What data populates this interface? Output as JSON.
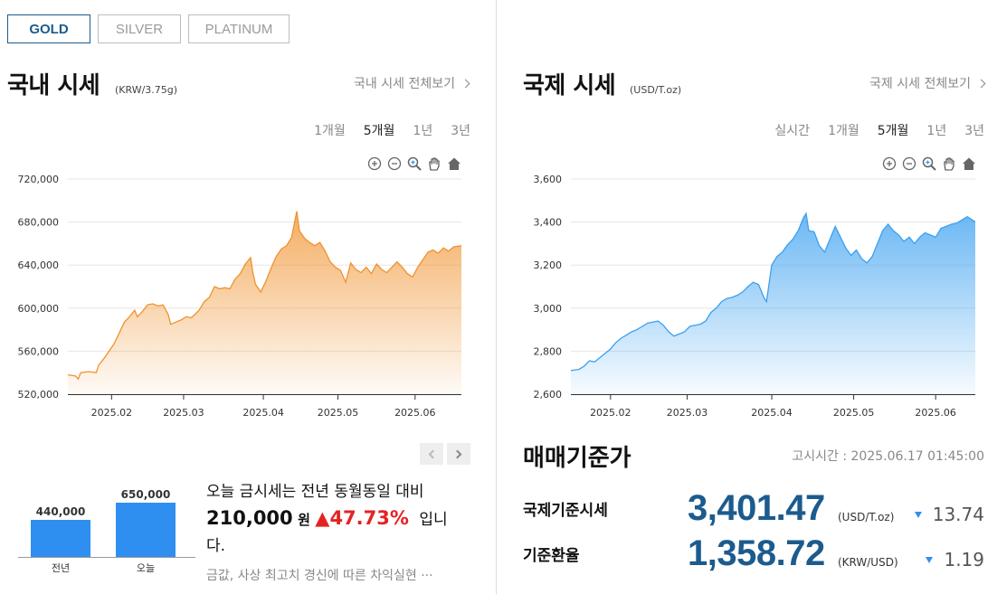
{
  "tabs": [
    {
      "label": "GOLD",
      "active": true
    },
    {
      "label": "SILVER",
      "active": false
    },
    {
      "label": "PLATINUM",
      "active": false
    }
  ],
  "domestic": {
    "title": "국내 시세",
    "unit": "(KRW/3.75g)",
    "more_label": "국내 시세 전체보기",
    "periods": [
      "1개월",
      "5개월",
      "1년",
      "3년"
    ],
    "active_period": "5개월"
  },
  "international": {
    "title": "국제 시세",
    "unit": "(USD/T.oz)",
    "more_label": "국제 시세 전체보기",
    "periods": [
      "실시간",
      "1개월",
      "5개월",
      "1년",
      "3년"
    ],
    "active_period": "5개월"
  },
  "tools": [
    "zoom-in-icon",
    "zoom-out-icon",
    "magnify-icon",
    "pan-hand-icon",
    "home-icon"
  ],
  "chart_data": [
    {
      "type": "area",
      "name": "domestic",
      "color": "#f0922e",
      "y_ticks": [
        "720,000",
        "680,000",
        "640,000",
        "600,000",
        "560,000",
        "520,000"
      ],
      "ylim": [
        520000,
        720000
      ],
      "x_ticks": [
        "2025.02",
        "2025.03",
        "2025.04",
        "2025.05",
        "2025.06"
      ],
      "xlim": [
        0,
        153
      ],
      "x_tick_positions": [
        17,
        45,
        76,
        105,
        135
      ],
      "points": [
        [
          0,
          538000
        ],
        [
          3,
          537000
        ],
        [
          4,
          534000
        ],
        [
          5,
          540000
        ],
        [
          8,
          541000
        ],
        [
          11,
          540000
        ],
        [
          12,
          547000
        ],
        [
          14,
          553000
        ],
        [
          16,
          560000
        ],
        [
          18,
          567000
        ],
        [
          20,
          577000
        ],
        [
          22,
          587000
        ],
        [
          24,
          592000
        ],
        [
          26,
          598000
        ],
        [
          27,
          592000
        ],
        [
          29,
          597000
        ],
        [
          31,
          603000
        ],
        [
          33,
          604000
        ],
        [
          35,
          602000
        ],
        [
          37,
          603000
        ],
        [
          39,
          594000
        ],
        [
          40,
          585000
        ],
        [
          42,
          587000
        ],
        [
          44,
          589000
        ],
        [
          46,
          592000
        ],
        [
          48,
          591000
        ],
        [
          51,
          598000
        ],
        [
          53,
          606000
        ],
        [
          55,
          610000
        ],
        [
          57,
          620000
        ],
        [
          59,
          618000
        ],
        [
          61,
          619000
        ],
        [
          63,
          618000
        ],
        [
          65,
          627000
        ],
        [
          67,
          632000
        ],
        [
          69,
          641000
        ],
        [
          71,
          647000
        ],
        [
          72,
          632000
        ],
        [
          73,
          622000
        ],
        [
          75,
          615000
        ],
        [
          77,
          625000
        ],
        [
          79,
          637000
        ],
        [
          81,
          648000
        ],
        [
          83,
          655000
        ],
        [
          85,
          658000
        ],
        [
          87,
          666000
        ],
        [
          88,
          678000
        ],
        [
          89,
          690000
        ],
        [
          90,
          672000
        ],
        [
          92,
          665000
        ],
        [
          94,
          661000
        ],
        [
          96,
          658000
        ],
        [
          98,
          661000
        ],
        [
          100,
          653000
        ],
        [
          102,
          643000
        ],
        [
          104,
          638000
        ],
        [
          106,
          635000
        ],
        [
          108,
          624000
        ],
        [
          110,
          642000
        ],
        [
          112,
          636000
        ],
        [
          114,
          633000
        ],
        [
          116,
          638000
        ],
        [
          118,
          632000
        ],
        [
          120,
          641000
        ],
        [
          122,
          636000
        ],
        [
          124,
          633000
        ],
        [
          126,
          638000
        ],
        [
          128,
          643000
        ],
        [
          130,
          638000
        ],
        [
          132,
          632000
        ],
        [
          134,
          629000
        ],
        [
          136,
          638000
        ],
        [
          138,
          645000
        ],
        [
          140,
          652000
        ],
        [
          142,
          654000
        ],
        [
          144,
          651000
        ],
        [
          146,
          656000
        ],
        [
          148,
          653000
        ],
        [
          150,
          657000
        ],
        [
          153,
          658000
        ]
      ]
    },
    {
      "type": "area",
      "name": "international",
      "color": "#3aa0f0",
      "y_ticks": [
        "3,600",
        "3,400",
        "3,200",
        "3,000",
        "2,800",
        "2,600"
      ],
      "ylim": [
        2600,
        3600
      ],
      "x_ticks": [
        "2025.02",
        "2025.03",
        "2025.04",
        "2025.05",
        "2025.06"
      ],
      "xlim": [
        0,
        153
      ],
      "x_tick_positions": [
        15,
        44,
        76,
        107,
        138
      ],
      "points": [
        [
          0,
          2710
        ],
        [
          3,
          2715
        ],
        [
          5,
          2730
        ],
        [
          7,
          2755
        ],
        [
          9,
          2750
        ],
        [
          11,
          2770
        ],
        [
          13,
          2790
        ],
        [
          15,
          2810
        ],
        [
          17,
          2840
        ],
        [
          19,
          2860
        ],
        [
          21,
          2875
        ],
        [
          23,
          2890
        ],
        [
          25,
          2900
        ],
        [
          27,
          2915
        ],
        [
          29,
          2930
        ],
        [
          31,
          2935
        ],
        [
          33,
          2940
        ],
        [
          35,
          2920
        ],
        [
          37,
          2890
        ],
        [
          39,
          2870
        ],
        [
          41,
          2880
        ],
        [
          43,
          2890
        ],
        [
          45,
          2915
        ],
        [
          47,
          2920
        ],
        [
          49,
          2925
        ],
        [
          51,
          2940
        ],
        [
          53,
          2980
        ],
        [
          55,
          3000
        ],
        [
          57,
          3030
        ],
        [
          59,
          3045
        ],
        [
          61,
          3050
        ],
        [
          63,
          3060
        ],
        [
          65,
          3075
        ],
        [
          67,
          3100
        ],
        [
          69,
          3120
        ],
        [
          71,
          3110
        ],
        [
          73,
          3050
        ],
        [
          74,
          3030
        ],
        [
          76,
          3200
        ],
        [
          78,
          3240
        ],
        [
          80,
          3260
        ],
        [
          82,
          3295
        ],
        [
          84,
          3320
        ],
        [
          86,
          3360
        ],
        [
          88,
          3420
        ],
        [
          89,
          3440
        ],
        [
          90,
          3360
        ],
        [
          92,
          3355
        ],
        [
          94,
          3290
        ],
        [
          96,
          3260
        ],
        [
          98,
          3320
        ],
        [
          100,
          3380
        ],
        [
          102,
          3330
        ],
        [
          104,
          3280
        ],
        [
          106,
          3245
        ],
        [
          108,
          3270
        ],
        [
          110,
          3230
        ],
        [
          112,
          3210
        ],
        [
          114,
          3240
        ],
        [
          116,
          3300
        ],
        [
          118,
          3360
        ],
        [
          120,
          3390
        ],
        [
          122,
          3360
        ],
        [
          124,
          3340
        ],
        [
          126,
          3310
        ],
        [
          128,
          3330
        ],
        [
          130,
          3300
        ],
        [
          132,
          3330
        ],
        [
          134,
          3350
        ],
        [
          136,
          3340
        ],
        [
          138,
          3330
        ],
        [
          140,
          3370
        ],
        [
          142,
          3380
        ],
        [
          144,
          3390
        ],
        [
          146,
          3395
        ],
        [
          148,
          3410
        ],
        [
          150,
          3425
        ],
        [
          153,
          3400
        ]
      ]
    },
    {
      "type": "bar",
      "name": "yoy",
      "categories": [
        "전년",
        "오늘"
      ],
      "values": [
        440000,
        650000
      ],
      "value_labels": [
        "440,000",
        "650,000"
      ],
      "ylim": [
        0,
        650000
      ]
    }
  ],
  "summary": {
    "prefix": "오늘 금시세는 전년 동월동일 대비",
    "amount": "210,000",
    "won": "원",
    "arrow": "▲",
    "percent": "47.73%",
    "suffix_a": "입니",
    "suffix_b": "다.",
    "news": "금값, 사상 최고치 경신에 따른 차익실현 ···"
  },
  "base_price": {
    "title": "매매기준가",
    "notice": "고시시간 : 2025.06.17 01:45:00",
    "rows": [
      {
        "label": "국제기준시세",
        "value": "3,401.47",
        "unit": "(USD/T.oz)",
        "change": "13.74"
      },
      {
        "label": "기준환율",
        "value": "1,358.72",
        "unit": "(KRW/USD)",
        "change": "1.19"
      }
    ]
  },
  "colors": {
    "accent": "#1c5b8e",
    "up": "#e52222",
    "down": "#2f8ff0"
  }
}
